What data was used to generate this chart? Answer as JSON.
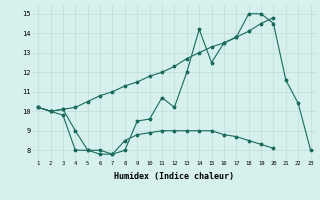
{
  "xlabel": "Humidex (Indice chaleur)",
  "x_values": [
    1,
    2,
    3,
    4,
    5,
    6,
    7,
    8,
    9,
    10,
    11,
    12,
    13,
    14,
    15,
    16,
    17,
    18,
    19,
    20,
    21,
    22,
    23
  ],
  "line1": [
    10.2,
    10.0,
    10.1,
    9.0,
    8.0,
    8.0,
    7.8,
    8.0,
    9.5,
    9.6,
    10.7,
    10.2,
    12.0,
    14.2,
    12.5,
    13.5,
    13.8,
    15.0,
    15.0,
    14.5,
    11.6,
    10.4,
    8.0
  ],
  "line2": [
    10.2,
    10.0,
    10.1,
    10.2,
    10.5,
    10.8,
    11.0,
    11.3,
    11.5,
    11.8,
    12.0,
    12.3,
    12.7,
    13.0,
    13.3,
    13.5,
    13.8,
    14.1,
    14.5,
    14.8,
    null,
    null,
    null
  ],
  "line3": [
    10.2,
    10.0,
    9.8,
    8.0,
    8.0,
    7.8,
    7.8,
    8.5,
    8.8,
    8.9,
    9.0,
    9.0,
    9.0,
    9.0,
    9.0,
    8.8,
    8.7,
    8.5,
    8.3,
    8.1,
    null,
    null,
    null
  ],
  "line_color": "#1a6b5a",
  "bg_color": "#d6f0ee",
  "grid_color": "#c0ddd9",
  "ylim": [
    7.5,
    15.5
  ],
  "yticks": [
    8,
    9,
    10,
    11,
    12,
    13,
    14,
    15
  ],
  "xlim": [
    0.5,
    23.5
  ],
  "xticks": [
    1,
    2,
    3,
    4,
    5,
    6,
    7,
    8,
    9,
    10,
    11,
    12,
    13,
    14,
    15,
    16,
    17,
    18,
    19,
    20,
    21,
    22,
    23
  ]
}
